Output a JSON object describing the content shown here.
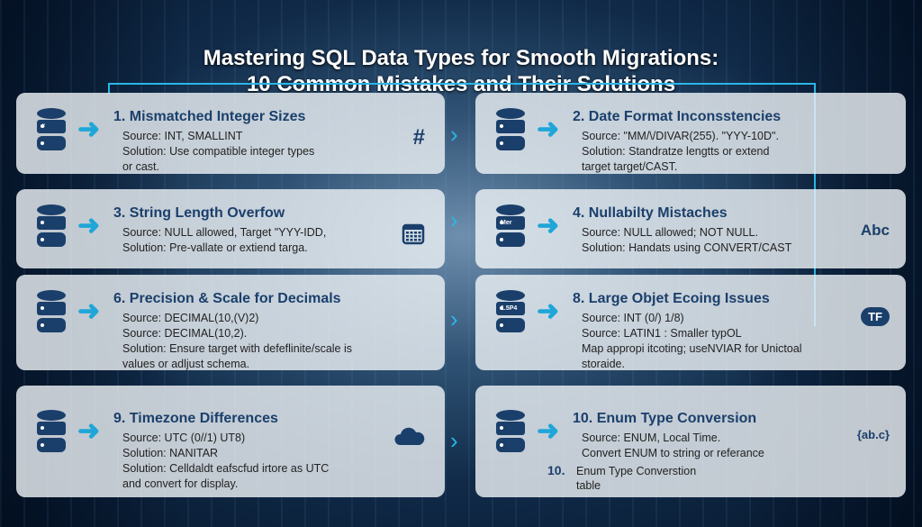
{
  "title": {
    "line1": "Mastering SQL Data Types for Smooth Migrations:",
    "line2": "10 Common Mistakes and Their Solutions"
  },
  "cards": [
    {
      "heading": "1. Mismatched Integer Sizes",
      "lines": [
        "Source: INT, SMALLINT",
        "Solution: Use compatible integer types",
        "or cast."
      ],
      "icon": "hash-icon",
      "icon_text": "#"
    },
    {
      "heading": "2. Date Format Inconsstencies",
      "lines": [
        "Source: \"MM/\\/DIVAR(255). \"YYY-10D\".",
        "Solution: Standratze lengtts or extend",
        "target target/CAST."
      ]
    },
    {
      "heading": "3. String Length Overfow",
      "lines": [
        "Source: NULL allowed, Target \"YYY-IDD,",
        "Solution: Pre-vallate or extiend targa."
      ],
      "icon": "calendar-icon"
    },
    {
      "heading": "4. Nullabilty Mistaches",
      "lines": [
        "Source: NULL allowed; NOT NULL.",
        "Solution: Handats using CONVERT/CAST"
      ],
      "icon": "abc-icon",
      "icon_text": "Abc"
    },
    {
      "heading": "6. Precision & Scale for Decimals",
      "lines": [
        "Source: DECIMAL(10,(V)2)",
        "Source: DECIMAL(10,2).",
        "Solution: Ensure target with defeflinite/scale is",
        "values or adljust schema."
      ]
    },
    {
      "heading": "8. Large Objet Ecoing Issues",
      "lines": [
        "Source: INT (0/) 1/8)",
        "Source: LATIN1 : Smaller typOL",
        "Map appropi itcoting; useNVIAR for Unictoal",
        "storaide."
      ],
      "icon": "cloud-tf-icon",
      "icon_text": "TF"
    },
    {
      "heading": "9. Timezone Differences",
      "lines": [
        "Source: UTC (0//1) UT8)",
        "Solution: NANITAR",
        "Solution: Celldaldt eafscfud irtore as UTC",
        "and convert for display."
      ],
      "icon": "cloud-icon"
    },
    {
      "heading": "10. Enum Type Conversion",
      "lines": [
        "Source: ENUM, Local Time.",
        "Convert ENUM to string or referance"
      ],
      "icon": "braces-abc-icon",
      "icon_text": "{ab.c}",
      "extra_num": "10.",
      "extra_lines": [
        "Enum Type Converstion",
        "table"
      ]
    }
  ],
  "db_labels": {
    "c1": "#",
    "c4": "Mer",
    "c8": "1.5P4"
  },
  "colors": {
    "heading": "#1b3f6b",
    "accent": "#29b6e8",
    "card": "#ecf0f4"
  }
}
